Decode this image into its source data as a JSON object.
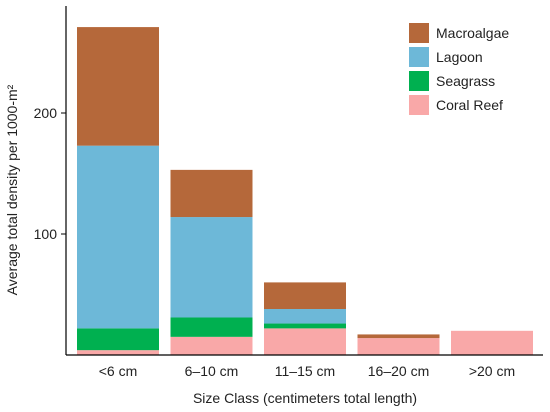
{
  "chart_data": {
    "type": "bar",
    "stacked": true,
    "categories": [
      "<6 cm",
      "6–10 cm",
      "11–15 cm",
      "16–20 cm",
      ">20 cm"
    ],
    "series": [
      {
        "name": "Coral Reef",
        "color": "#f9a8a8",
        "values": [
          4,
          15,
          22,
          14,
          20
        ]
      },
      {
        "name": "Seagrass",
        "color": "#00b050",
        "values": [
          18,
          16,
          4,
          0,
          0
        ]
      },
      {
        "name": "Lagoon",
        "color": "#6db8d8",
        "values": [
          151,
          83,
          12,
          0,
          0
        ]
      },
      {
        "name": "Macroalgae",
        "color": "#b5683a",
        "values": [
          98,
          39,
          22,
          3,
          0
        ]
      }
    ],
    "legend_order": [
      "Macroalgae",
      "Lagoon",
      "Seagrass",
      "Coral Reef"
    ],
    "legend_position": "top-right",
    "xlabel": "Size Class (centimeters total length)",
    "ylabel": "Average total density per 1000-m²",
    "yticks": [
      100,
      200
    ],
    "ylim": [
      0,
      290
    ],
    "grid": false
  }
}
